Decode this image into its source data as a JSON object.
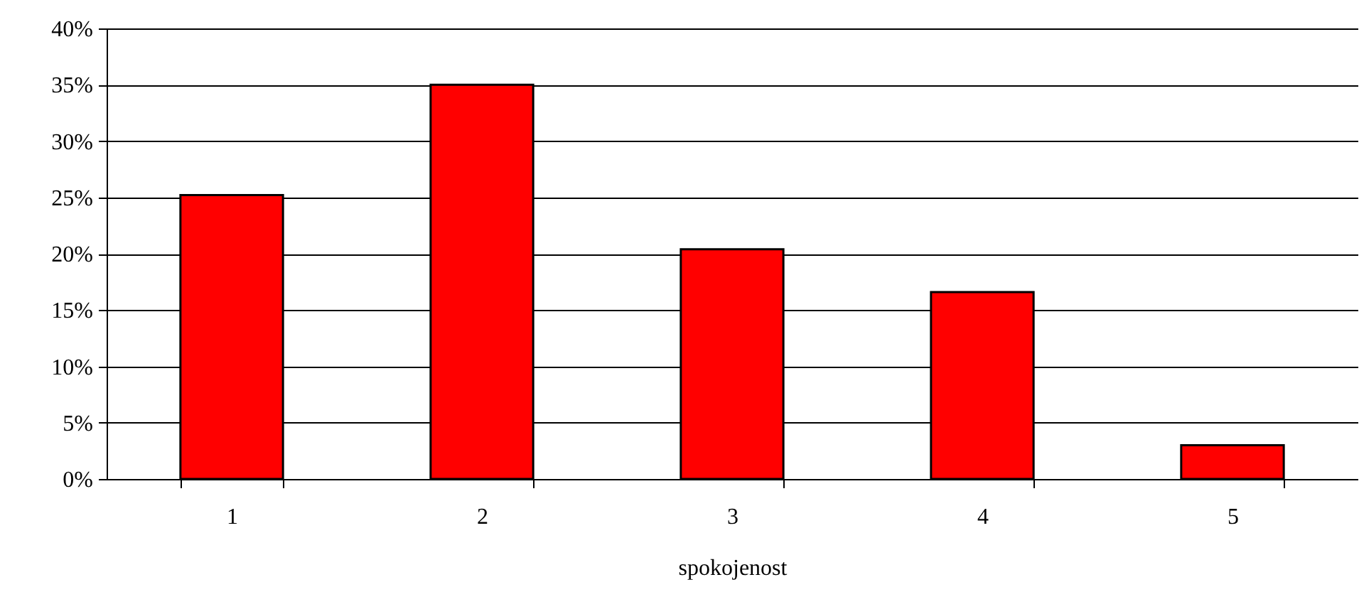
{
  "chart_data": {
    "type": "bar",
    "xlabel": "spokojenost",
    "categories": [
      "1",
      "2",
      "3",
      "4",
      "5"
    ],
    "values": [
      25.2,
      35.0,
      20.4,
      16.6,
      3.0
    ],
    "color": "#ff0000",
    "ylim": [
      0,
      40
    ],
    "yticks": [
      {
        "value": 0,
        "label": "0%"
      },
      {
        "value": 5,
        "label": "5%"
      },
      {
        "value": 10,
        "label": "10%"
      },
      {
        "value": 15,
        "label": "15%"
      },
      {
        "value": 20,
        "label": "20%"
      },
      {
        "value": 25,
        "label": "25%"
      },
      {
        "value": 30,
        "label": "30%"
      },
      {
        "value": 35,
        "label": "35%"
      },
      {
        "value": 40,
        "label": "40%"
      }
    ],
    "grid": "y"
  }
}
